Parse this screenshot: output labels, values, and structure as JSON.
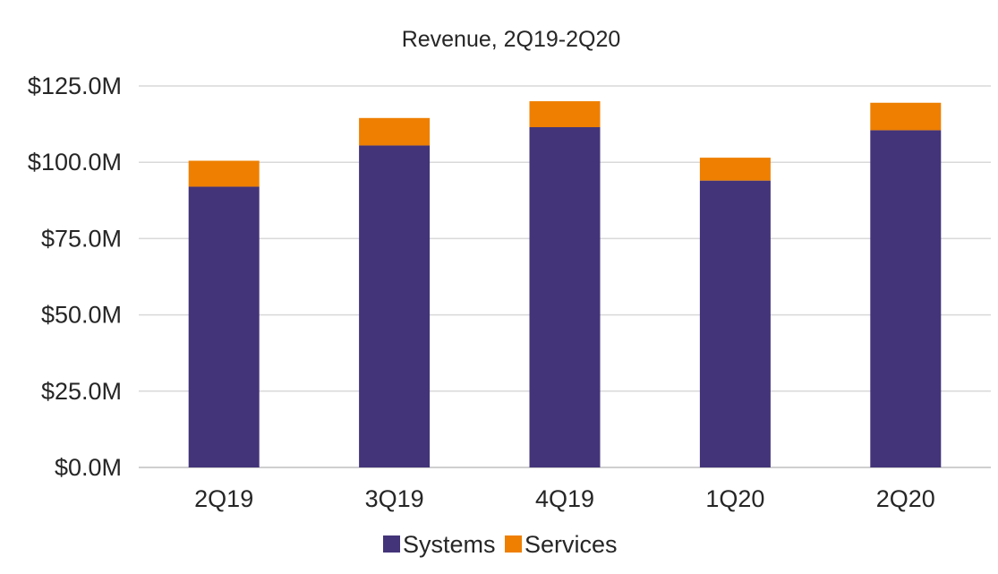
{
  "chart_data": {
    "type": "bar",
    "stacked": true,
    "title": "Revenue, 2Q19-2Q20",
    "xlabel": "",
    "ylabel": "",
    "categories": [
      "2Q19",
      "3Q19",
      "4Q19",
      "1Q20",
      "2Q20"
    ],
    "series": [
      {
        "name": "Systems",
        "color": "#433479",
        "values": [
          92.0,
          105.5,
          111.5,
          94.0,
          110.5
        ]
      },
      {
        "name": "Services",
        "color": "#ee7f00",
        "values": [
          8.5,
          9.0,
          8.5,
          7.5,
          9.0
        ]
      }
    ],
    "ylim": [
      0,
      125
    ],
    "yticks": [
      0,
      25,
      50,
      75,
      100,
      125
    ],
    "ytick_labels": [
      "$0.0M",
      "$25.0M",
      "$50.0M",
      "$75.0M",
      "$100.0M",
      "$125.0M"
    ],
    "grid": true,
    "legend_position": "bottom"
  }
}
